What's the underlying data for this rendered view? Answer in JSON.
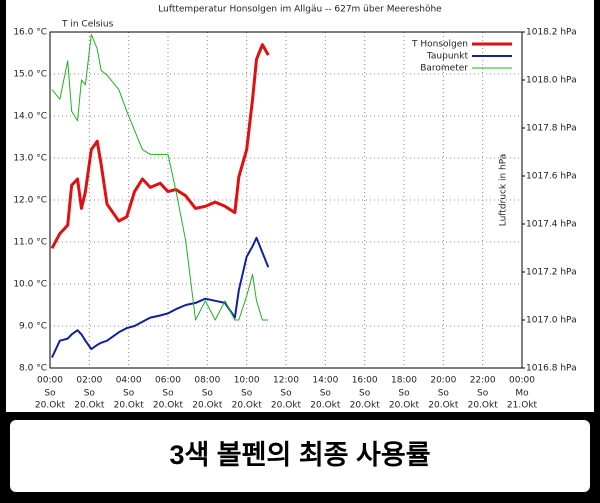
{
  "chart_data": {
    "type": "line",
    "title": "Lufttemperatur Honsolgen im Allgäu -- 627m über Meereshöhe",
    "ylabel": "T in Celsius",
    "y2label": "Luftdruck in hPa",
    "caption": "3색 볼펜의 최종 사용률",
    "x": [
      0.1,
      0.5,
      0.9,
      1.1,
      1.4,
      1.6,
      1.8,
      2.1,
      2.4,
      2.6,
      2.9,
      3.5,
      3.9,
      4.3,
      4.7,
      5.1,
      5.6,
      6.0,
      6.4,
      6.9,
      7.4,
      7.9,
      8.4,
      8.9,
      9.4,
      9.6,
      10.0,
      10.3,
      10.5,
      10.8,
      11.1
    ],
    "series": [
      {
        "name": "T Honsolgen",
        "color": "#e01010",
        "width": 3,
        "values": [
          10.85,
          11.2,
          11.4,
          12.35,
          12.5,
          11.8,
          12.2,
          13.2,
          13.4,
          12.85,
          11.9,
          11.5,
          11.6,
          12.2,
          12.5,
          12.3,
          12.4,
          12.2,
          12.25,
          12.1,
          11.8,
          11.85,
          11.95,
          11.85,
          11.7,
          12.55,
          13.2,
          14.4,
          15.35,
          15.7,
          15.45
        ]
      },
      {
        "name": "Taupunkt",
        "color": "#1020a0",
        "width": 2,
        "values": [
          8.25,
          8.65,
          8.7,
          8.8,
          8.9,
          8.8,
          8.65,
          8.45,
          8.55,
          8.6,
          8.65,
          8.85,
          8.95,
          9.0,
          9.1,
          9.2,
          9.25,
          9.3,
          9.4,
          9.5,
          9.55,
          9.65,
          9.6,
          9.55,
          9.2,
          9.85,
          10.65,
          10.9,
          11.1,
          10.75,
          10.4
        ]
      },
      {
        "name": "Barometer",
        "color": "#20b020",
        "width": 1,
        "axis": "y2",
        "values": [
          1017.96,
          1017.92,
          1018.08,
          1017.87,
          1017.83,
          1018.0,
          1017.98,
          1018.19,
          1018.13,
          1018.04,
          1018.02,
          1017.96,
          1017.87,
          1017.79,
          1017.71,
          1017.69,
          1017.69,
          1017.69,
          1017.54,
          1017.33,
          1017.0,
          1017.08,
          1017.0,
          1017.08,
          1017.0,
          1017.0,
          1017.1,
          1017.19,
          1017.08,
          1017.0,
          1017.0
        ]
      }
    ],
    "xlim": [
      0,
      24
    ],
    "xticks": [
      {
        "value": 0,
        "label": "00:00"
      },
      {
        "value": 2,
        "label": "02:00"
      },
      {
        "value": 4,
        "label": "04:00"
      },
      {
        "value": 6,
        "label": "06:00"
      },
      {
        "value": 8,
        "label": "08:00"
      },
      {
        "value": 10,
        "label": "10:00"
      },
      {
        "value": 12,
        "label": "12:00"
      },
      {
        "value": 14,
        "label": "14:00"
      },
      {
        "value": 16,
        "label": "16:00"
      },
      {
        "value": 18,
        "label": "18:00"
      },
      {
        "value": 20,
        "label": "20:00"
      },
      {
        "value": 22,
        "label": "22:00"
      },
      {
        "value": 24,
        "label": "00:00"
      }
    ],
    "xtick_weekdays": [
      "So",
      "So",
      "So",
      "So",
      "So",
      "So",
      "So",
      "So",
      "So",
      "So",
      "So",
      "So",
      "Mo"
    ],
    "xtick_dates": [
      "20.Okt",
      "20.Okt",
      "20.Okt",
      "20.Okt",
      "20.Okt",
      "20.Okt",
      "20.Okt",
      "20.Okt",
      "20.Okt",
      "20.Okt",
      "20.Okt",
      "20.Okt",
      "21.Okt"
    ],
    "ylim": [
      8,
      16
    ],
    "yticks": [
      {
        "value": 8,
        "label": "8.0 °C"
      },
      {
        "value": 9,
        "label": "9.0 °C"
      },
      {
        "value": 10,
        "label": "10.0 °C"
      },
      {
        "value": 11,
        "label": "11.0 °C"
      },
      {
        "value": 12,
        "label": "12.0 °C"
      },
      {
        "value": 13,
        "label": "13.0 °C"
      },
      {
        "value": 14,
        "label": "14.0 °C"
      },
      {
        "value": 15,
        "label": "15.0 °C"
      },
      {
        "value": 16,
        "label": "16.0 °C"
      }
    ],
    "y2lim": [
      1016.8,
      1018.2
    ],
    "y2ticks": [
      {
        "value": 1016.8,
        "label": "1016.8 hPa"
      },
      {
        "value": 1017.0,
        "label": "1017.0 hPa"
      },
      {
        "value": 1017.2,
        "label": "1017.2 hPa"
      },
      {
        "value": 1017.4,
        "label": "1017.4 hPa"
      },
      {
        "value": 1017.6,
        "label": "1017.6 hPa"
      },
      {
        "value": 1017.8,
        "label": "1017.8 hPa"
      },
      {
        "value": 1018.0,
        "label": "1018.0 hPa"
      },
      {
        "value": 1018.2,
        "label": "1018.2 hPa"
      }
    ],
    "grid": true,
    "legend": "top-right"
  }
}
